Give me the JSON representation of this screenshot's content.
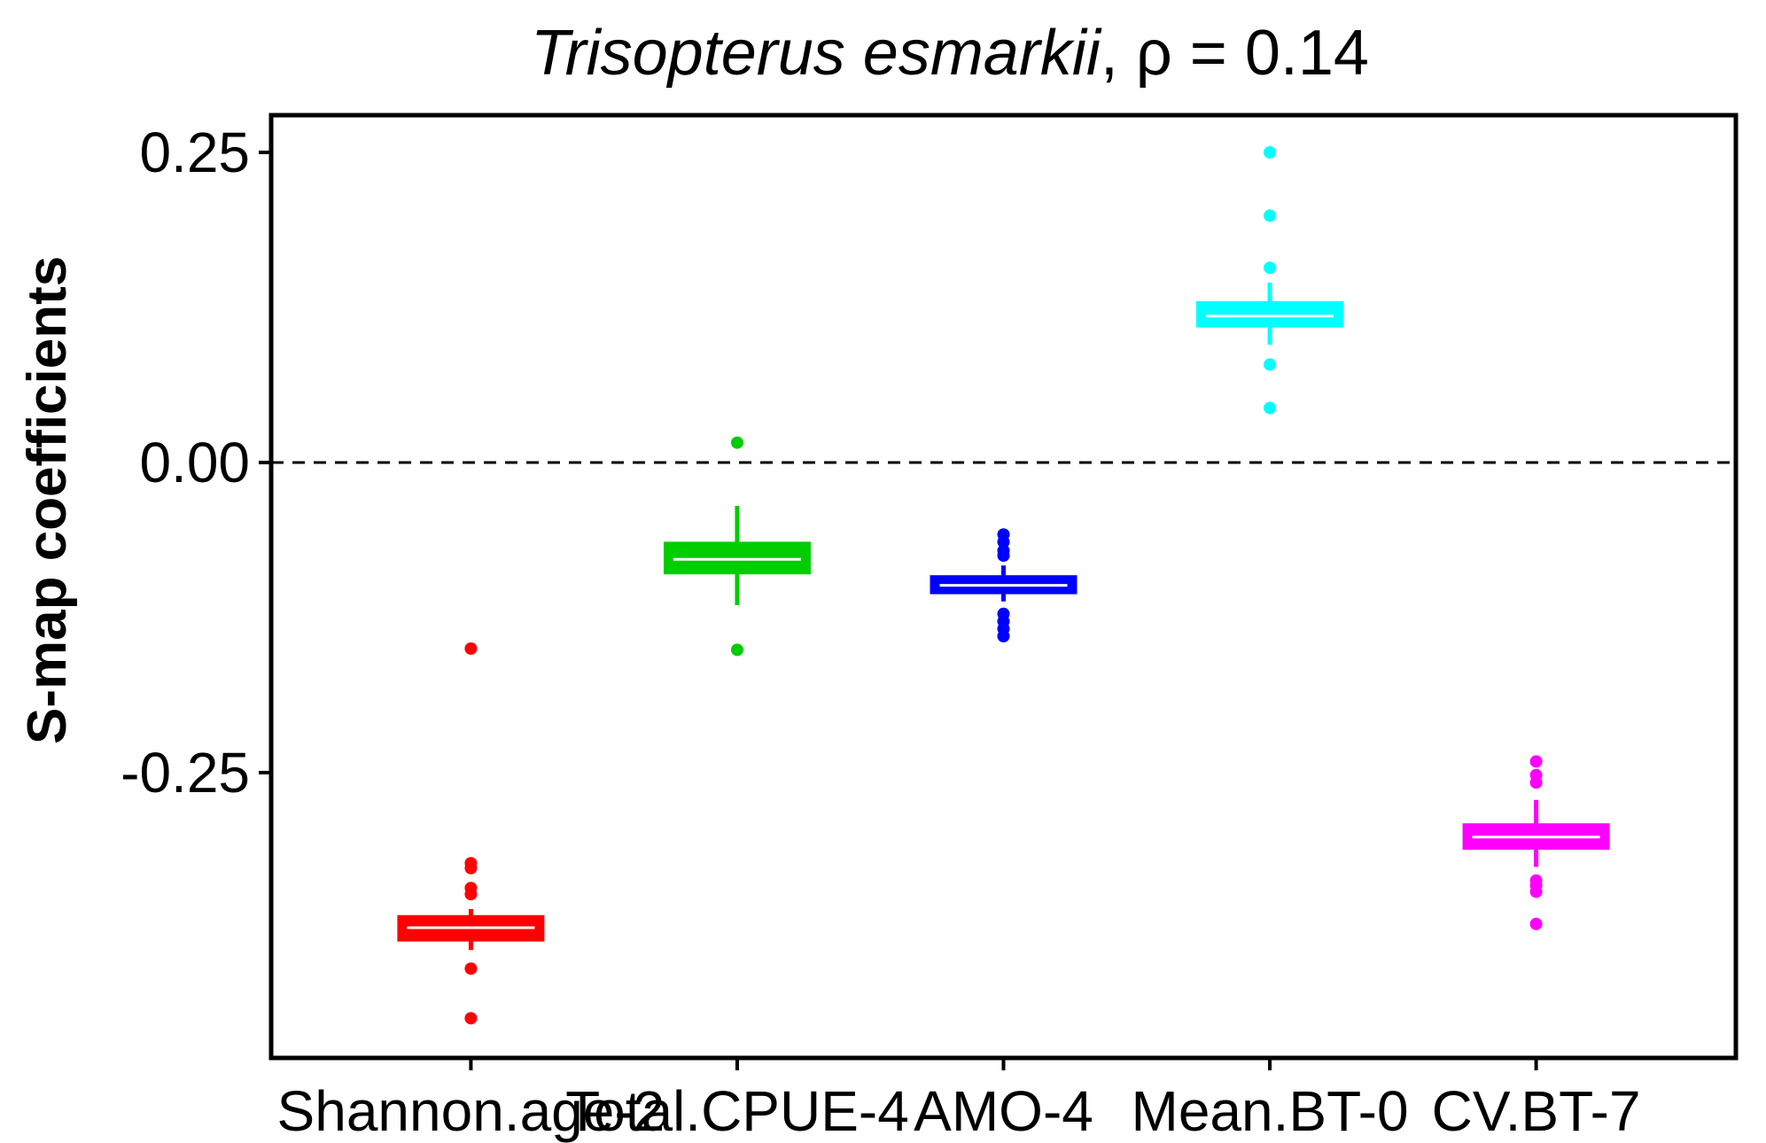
{
  "chart_data": {
    "type": "box",
    "title": {
      "species": "Trisopterus esmarkii",
      "stat": ", ρ = 0.14"
    },
    "xlabel": "",
    "ylabel": "S-map coefficients",
    "ylim": [
      -0.48,
      0.28
    ],
    "yticks": [
      0.25,
      0.0,
      -0.25
    ],
    "ytick_labels": [
      "0.25",
      "0.00",
      "-0.25"
    ],
    "reference_line": {
      "y": 0.0,
      "style": "dashed"
    },
    "grid": false,
    "legend": "none",
    "categories": [
      "Shannon.age-2",
      "Total.CPUE-4",
      "AMO-4",
      "Mean.BT-0",
      "CV.BT-7"
    ],
    "series": [
      {
        "category": "Shannon.age-2",
        "color": "#FF0000",
        "q1": -0.384,
        "median": -0.375,
        "q3": -0.367,
        "whisker_low": -0.393,
        "whisker_high": -0.36,
        "outliers": [
          -0.15,
          -0.323,
          -0.327,
          -0.343,
          -0.348,
          -0.408,
          -0.448
        ]
      },
      {
        "category": "Total.CPUE-4",
        "color": "#00CD00",
        "q1": -0.088,
        "median": -0.078,
        "q3": -0.066,
        "whisker_low": -0.115,
        "whisker_high": -0.035,
        "outliers": [
          0.016,
          -0.151
        ]
      },
      {
        "category": "AMO-4",
        "color": "#0000FF",
        "q1": -0.104,
        "median": -0.099,
        "q3": -0.093,
        "whisker_low": -0.112,
        "whisker_high": -0.083,
        "outliers": [
          -0.058,
          -0.064,
          -0.071,
          -0.075,
          -0.122,
          -0.128,
          -0.134,
          -0.14
        ]
      },
      {
        "category": "Mean.BT-0",
        "color": "#00FFFF",
        "q1": 0.111,
        "median": 0.118,
        "q3": 0.128,
        "whisker_low": 0.095,
        "whisker_high": 0.145,
        "outliers": [
          0.25,
          0.199,
          0.157,
          0.079,
          0.044
        ]
      },
      {
        "category": "CV.BT-7",
        "color": "#FF00FF",
        "q1": -0.31,
        "median": -0.302,
        "q3": -0.293,
        "whisker_low": -0.326,
        "whisker_high": -0.272,
        "outliers": [
          -0.241,
          -0.252,
          -0.258,
          -0.337,
          -0.341,
          -0.346,
          -0.372
        ]
      }
    ]
  }
}
